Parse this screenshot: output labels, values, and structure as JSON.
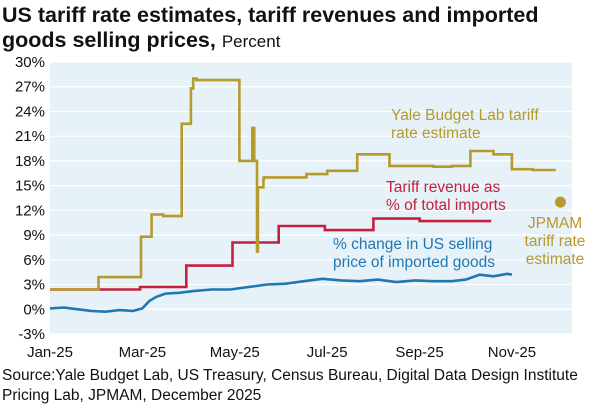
{
  "header": {
    "title": "US tariff rate estimates, tariff revenues and imported goods selling prices,",
    "unit": "Percent"
  },
  "footer": {
    "source": "Source:Yale Budget Lab, US Treasury, Census Bureau, Digital Data Design Institute Pricing Lab, JPMAM, December 2025"
  },
  "chart_data": {
    "type": "line",
    "title": "US tariff rate estimates, tariff revenues and imported goods selling prices, Percent",
    "xlabel": "",
    "ylabel": "Percent",
    "ylim": [
      -3,
      30
    ],
    "yticks": [
      -3,
      0,
      3,
      6,
      9,
      12,
      15,
      18,
      21,
      24,
      27,
      30
    ],
    "ytick_labels": [
      "-3%",
      "0%",
      "3%",
      "6%",
      "9%",
      "12%",
      "15%",
      "18%",
      "21%",
      "24%",
      "27%",
      "30%"
    ],
    "x_unit": "months since Jan-25",
    "xlim": [
      0,
      11.3
    ],
    "xticks": [
      0,
      2,
      4,
      6,
      8,
      10
    ],
    "xtick_labels": [
      "Jan-25",
      "Mar-25",
      "May-25",
      "Jul-25",
      "Sep-25",
      "Nov-25"
    ],
    "grid": true,
    "colors": {
      "yale": "#b59a2c",
      "revenue": "#c4213e",
      "price": "#1f78b4",
      "jpmam": "#b59a2c",
      "plot_bg": "#e6f1f8",
      "grid": "#ffffff"
    },
    "series": [
      {
        "name": "Yale Budget Lab tariff rate estimate",
        "label_lines": [
          "Yale Budget Lab tariff",
          "rate estimate"
        ],
        "x": [
          0,
          1.05,
          1.05,
          1.97,
          1.97,
          2.2,
          2.2,
          2.45,
          2.45,
          2.85,
          2.85,
          3.05,
          3.05,
          3.1,
          3.1,
          3.17,
          3.17,
          4.1,
          4.1,
          4.38,
          4.38,
          4.42,
          4.42,
          4.48,
          4.48,
          4.5,
          4.5,
          4.62,
          4.62,
          4.63,
          4.63,
          5.55,
          5.55,
          6.0,
          6.0,
          6.65,
          6.65,
          7.35,
          7.35,
          8.3,
          8.3,
          8.7,
          8.7,
          9.1,
          9.1,
          9.6,
          9.6,
          10.0,
          10.0,
          10.45,
          10.45,
          10.95
        ],
        "y": [
          2.4,
          2.4,
          3.9,
          3.9,
          8.8,
          8.8,
          11.5,
          11.5,
          11.3,
          11.3,
          22.5,
          22.5,
          26.8,
          26.8,
          28.0,
          28.0,
          27.8,
          27.8,
          18.0,
          18.0,
          22.0,
          22.0,
          18.0,
          18.0,
          7.0,
          7.0,
          14.8,
          14.8,
          15.8,
          15.8,
          16.0,
          16.0,
          16.4,
          16.4,
          16.8,
          16.8,
          18.8,
          18.8,
          17.4,
          17.4,
          17.3,
          17.3,
          17.4,
          17.4,
          19.2,
          19.2,
          18.8,
          18.8,
          17.0,
          17.0,
          16.9,
          16.9
        ]
      },
      {
        "name": "Tariff revenue as % of total imports",
        "label_lines": [
          "Tariff revenue as",
          "% of total imports"
        ],
        "x": [
          0,
          1.95,
          1.95,
          2.95,
          2.95,
          3.95,
          3.95,
          4.95,
          4.95,
          5.95,
          5.95,
          7.0,
          7.0,
          8.0,
          8.0,
          9.0,
          9.0,
          9.55
        ],
        "y": [
          2.4,
          2.4,
          2.7,
          2.7,
          5.3,
          5.3,
          8.1,
          8.1,
          10.1,
          10.1,
          9.6,
          9.6,
          11.0,
          11.0,
          10.7,
          10.7,
          10.7,
          10.7
        ]
      },
      {
        "name": "% change in US selling price of imported goods",
        "label_lines": [
          "% change in US selling",
          "price of imported goods"
        ],
        "x": [
          0,
          0.3,
          0.6,
          0.9,
          1.2,
          1.5,
          1.8,
          2.0,
          2.15,
          2.3,
          2.5,
          2.8,
          3.1,
          3.5,
          3.9,
          4.3,
          4.7,
          5.1,
          5.5,
          5.9,
          6.3,
          6.7,
          7.1,
          7.5,
          7.9,
          8.3,
          8.7,
          9.0,
          9.3,
          9.6,
          9.9,
          10.0
        ],
        "y": [
          0.1,
          0.2,
          0.0,
          -0.2,
          -0.3,
          -0.1,
          -0.2,
          0.1,
          1.0,
          1.5,
          1.9,
          2.0,
          2.2,
          2.4,
          2.4,
          2.7,
          3.0,
          3.1,
          3.4,
          3.7,
          3.5,
          3.4,
          3.6,
          3.3,
          3.5,
          3.4,
          3.4,
          3.6,
          4.2,
          4.0,
          4.3,
          4.2
        ]
      }
    ],
    "points": [
      {
        "name": "JPMAM tariff rate estimate",
        "label_lines": [
          "JPMAM",
          "tariff rate",
          "estimate"
        ],
        "x": 11.05,
        "y": 13.0
      }
    ]
  }
}
